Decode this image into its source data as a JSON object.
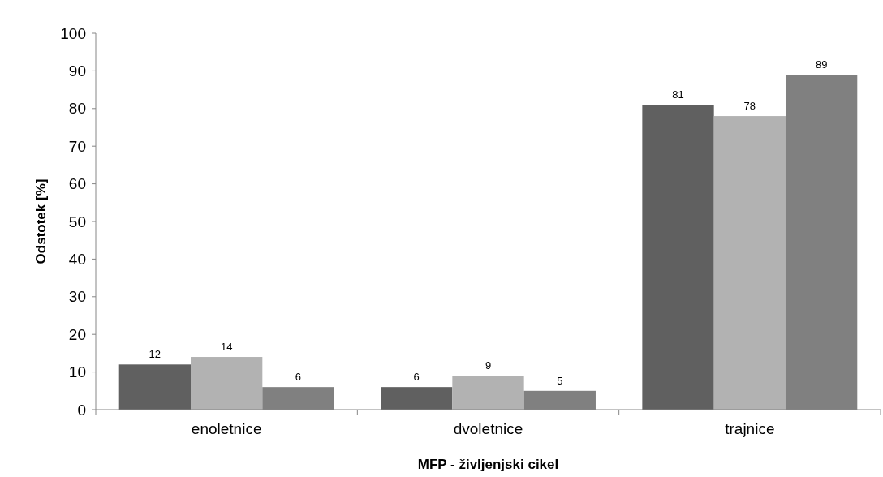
{
  "chart_data": {
    "type": "bar",
    "xlabel": "MFP - življenjski cikel",
    "ylabel": "Odstotek [%]",
    "categories": [
      "enoletnice",
      "dvoletnice",
      "trajnice"
    ],
    "series": [
      {
        "color": "#606060",
        "values": [
          12,
          6,
          81
        ]
      },
      {
        "color": "#b2b2b2",
        "values": [
          14,
          9,
          78
        ]
      },
      {
        "color": "#808080",
        "values": [
          6,
          5,
          89
        ]
      }
    ],
    "ylim": [
      0,
      100
    ],
    "yticks": [
      0,
      10,
      20,
      30,
      40,
      50,
      60,
      70,
      80,
      90,
      100
    ],
    "data_labels": true
  }
}
